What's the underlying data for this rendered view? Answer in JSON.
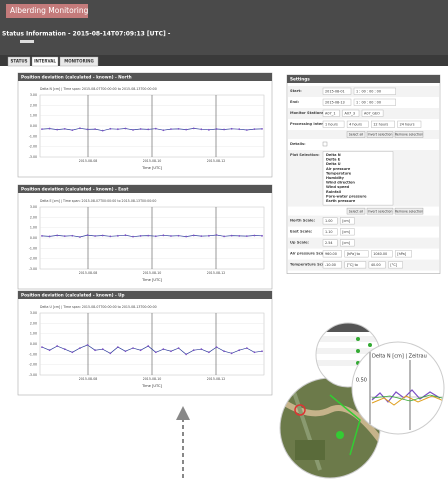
{
  "header": {
    "title": "Alberding Monitoring",
    "status": "Status Information - 2015-08-14T07:09:13 [UTC] -"
  },
  "tabs": [
    "STATUS",
    "INTERVAL",
    "MONITORING"
  ],
  "chart_data": [
    {
      "type": "line",
      "title": "Position deviation (calculated - known) - North",
      "caption": "Delta N [cm] | Time span: 2015-08-07T00:00:00 to 2015-08-13T00:00:00",
      "xlabel": "Time [UTC]",
      "xtick_labels": [
        "2015-08-08",
        "2015-08-10",
        "2015-08-12"
      ],
      "ylim": [
        -3,
        3
      ],
      "yticks": [
        {
          "value": 3,
          "label": "3.00"
        },
        {
          "value": 2,
          "label": "2.00"
        },
        {
          "value": 1,
          "label": "1.00"
        },
        {
          "value": 0,
          "label": "0.00"
        },
        {
          "value": -1,
          "label": "-1.00"
        },
        {
          "value": -2,
          "label": "-2.00"
        },
        {
          "value": -3,
          "label": "-3.00"
        }
      ],
      "series": [
        {
          "color": "#2b3a9a",
          "marker_color": "#7b4fc4",
          "values": [
            -0.3,
            -0.25,
            -0.35,
            -0.28,
            -0.4,
            -0.22,
            -0.33,
            -0.3,
            -0.45,
            -0.27,
            -0.31,
            -0.24,
            -0.38,
            -0.29,
            -0.33,
            -0.26,
            -0.41,
            -0.3,
            -0.28,
            -0.35,
            -0.23,
            -0.32,
            -0.37,
            -0.29,
            -0.34,
            -0.27,
            -0.31,
            -0.39,
            -0.3,
            -0.28
          ]
        }
      ]
    },
    {
      "type": "line",
      "title": "Position deviation (calculated - known) - East",
      "caption": "Delta E [cm] | Time span: 2015-08-07T00:00:00 to 2015-08-13T00:00:00",
      "xlabel": "Time [UTC]",
      "xtick_labels": [
        "2015-08-08",
        "2015-08-10",
        "2015-08-12"
      ],
      "ylim": [
        -3,
        3
      ],
      "yticks": [
        {
          "value": 3,
          "label": "3.00"
        },
        {
          "value": 2,
          "label": "2.00"
        },
        {
          "value": 1,
          "label": "1.00"
        },
        {
          "value": 0,
          "label": "0.00"
        },
        {
          "value": -1,
          "label": "-1.00"
        },
        {
          "value": -2,
          "label": "-2.00"
        },
        {
          "value": -3,
          "label": "-3.00"
        }
      ],
      "series": [
        {
          "color": "#2b3a9a",
          "marker_color": "#7b4fc4",
          "values": [
            0.2,
            0.15,
            0.25,
            0.18,
            0.22,
            0.1,
            0.28,
            0.19,
            0.24,
            0.16,
            0.21,
            0.27,
            0.13,
            0.2,
            0.23,
            0.17,
            0.26,
            0.19,
            0.22,
            0.14,
            0.25,
            0.18,
            0.21,
            0.29,
            0.16,
            0.23,
            0.2,
            0.18,
            0.24,
            0.21
          ]
        }
      ]
    },
    {
      "type": "line",
      "title": "Position deviation (calculated - known) - Up",
      "caption": "Delta U [cm] | Time span: 2015-08-07T00:00:00 to 2015-08-13T00:00:00",
      "xlabel": "Time [UTC]",
      "xtick_labels": [
        "2015-08-08",
        "2015-08-10",
        "2015-08-12"
      ],
      "ylim": [
        -3,
        3
      ],
      "yticks": [
        {
          "value": 3,
          "label": "3.00"
        },
        {
          "value": 2,
          "label": "2.00"
        },
        {
          "value": 1,
          "label": "1.00"
        },
        {
          "value": 0,
          "label": "0.00"
        },
        {
          "value": -1,
          "label": "-1.00"
        },
        {
          "value": -2,
          "label": "-2.00"
        },
        {
          "value": -3,
          "label": "-3.00"
        }
      ],
      "series": [
        {
          "color": "#2b3a9a",
          "marker_color": "#7b4fc4",
          "values": [
            -0.3,
            -0.6,
            -0.2,
            -0.5,
            -0.8,
            -0.4,
            -0.1,
            -0.6,
            -0.5,
            -0.9,
            -0.3,
            -0.7,
            -0.4,
            -0.6,
            -0.2,
            -0.8,
            -0.5,
            -0.7,
            -0.4,
            -1.0,
            -0.6,
            -0.5,
            -0.8,
            -0.3,
            -0.7,
            -0.9,
            -0.6,
            -0.4,
            -0.8,
            -0.7
          ]
        }
      ]
    }
  ],
  "settings": {
    "title": "Settings",
    "rows": [
      {
        "label": "Start:",
        "items": [
          "2015-08-01",
          "1 : 00 : 00 : 00"
        ]
      },
      {
        "label": "End:",
        "items": [
          "2015-08-13",
          "1 : 00 : 00 : 00"
        ]
      },
      {
        "label": "Monitor Stations:",
        "items": [
          "A07_1",
          "A07_3",
          "A07_GEO"
        ]
      },
      {
        "label": "Processing intervals:",
        "items": [
          "1 hours",
          "4 hours",
          "12 hours",
          "24 hours"
        ]
      },
      {
        "buttons": [
          "Select all",
          "Invert selection",
          "Remove selection"
        ]
      },
      {
        "label": "Details:",
        "items": []
      },
      {
        "label": "Plot Selection:",
        "list": [
          "Delta N",
          "Delta E",
          "Delta U",
          "Air pressure",
          "Temperature",
          "Humidity",
          "Wind direction",
          "Wind speed",
          "Rainfall",
          "Pore-water pressure",
          "Earth pressure"
        ]
      },
      {
        "buttons": [
          "Select all",
          "Invert selection",
          "Remove selection"
        ]
      },
      {
        "label": "North Scale:",
        "items": [
          "1.00",
          "[cm]"
        ]
      },
      {
        "label": "East Scale:",
        "items": [
          "1.10",
          "[cm]"
        ]
      },
      {
        "label": "Up Scale:",
        "items": [
          "2.54",
          "[cm]"
        ]
      },
      {
        "label": "Air pressure Scale:",
        "items": [
          "960.00",
          "[hPa] to",
          "1040.00",
          "[hPa]"
        ]
      },
      {
        "label": "Temperature Scale:",
        "items": [
          "-10.00",
          "[°C] to",
          "40.00",
          "[°C]"
        ]
      }
    ]
  },
  "zoom": {
    "caption": "Delta N [cm] | Zeitrau",
    "ytick": "0.50"
  }
}
